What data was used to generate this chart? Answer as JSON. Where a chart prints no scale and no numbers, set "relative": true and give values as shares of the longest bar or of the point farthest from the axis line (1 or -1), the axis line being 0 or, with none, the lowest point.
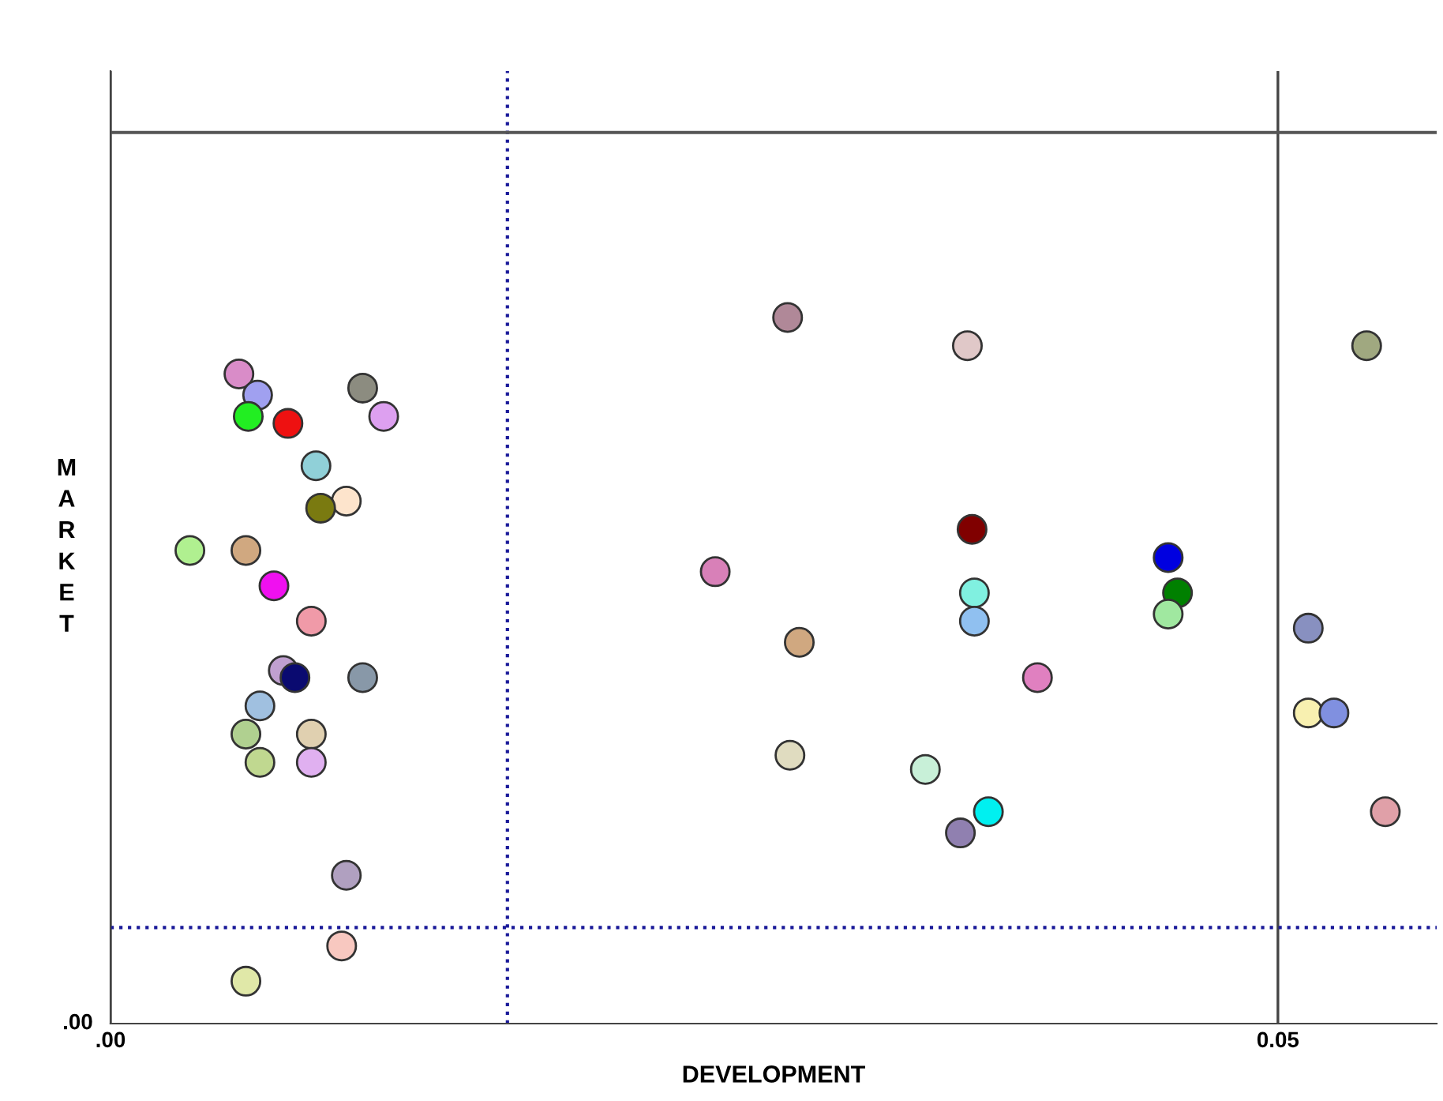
{
  "chart_data": {
    "type": "scatter",
    "xlabel": "DEVELOPMENT",
    "ylabel": "MARKET",
    "relative": true,
    "xlim": [
      0,
      0.0568
    ],
    "xticks": [
      {
        "value": 0,
        "label": ".00"
      },
      0.05
    ],
    "grid": "x",
    "marker": "circle",
    "annotations": [
      ".00"
    ],
    "x": [
      0.0055,
      0.0063,
      0.0108,
      0.0059,
      0.0076,
      0.0117,
      0.0088,
      0.0101,
      0.009,
      0.0034,
      0.0058,
      0.007,
      0.0086,
      0.0074,
      0.0079,
      0.0108,
      0.0064,
      0.0058,
      0.0086,
      0.0064,
      0.0086,
      0.0101,
      0.0099,
      0.0058,
      0.029,
      0.0367,
      0.0538,
      0.0369,
      0.0453,
      0.0259,
      0.037,
      0.0457,
      0.037,
      0.0453,
      0.0295,
      0.0513,
      0.0397,
      0.0513,
      0.0524,
      0.0291,
      0.0349,
      0.0376,
      0.0364,
      0.0546
    ],
    "values": [
      0.92,
      0.89,
      0.9,
      0.86,
      0.85,
      0.86,
      0.79,
      0.74,
      0.73,
      0.67,
      0.67,
      0.62,
      0.57,
      0.5,
      0.49,
      0.49,
      0.45,
      0.41,
      0.41,
      0.37,
      0.37,
      0.21,
      0.11,
      0.06,
      1.0,
      0.96,
      0.96,
      0.7,
      0.66,
      0.64,
      0.61,
      0.61,
      0.57,
      0.58,
      0.54,
      0.56,
      0.49,
      0.44,
      0.44,
      0.38,
      0.36,
      0.3,
      0.27,
      0.3
    ],
    "colors": [
      "#d98cc8",
      "#a0a0f0",
      "#8c8c80",
      "#22ee22",
      "#ee1111",
      "#dda0f0",
      "#90d0d8",
      "#fde4cc",
      "#7a7a10",
      "#b0f090",
      "#d0a880",
      "#f010f0",
      "#f09aa8",
      "#c0a0d0",
      "#0a0a70",
      "#8898a8",
      "#a0c0e0",
      "#b0d090",
      "#e0d0b0",
      "#c0d890",
      "#e0b0f0",
      "#b0a0c0",
      "#f8c8c0",
      "#e0e8a8",
      "#b08898",
      "#e0c8c8",
      "#a0a880",
      "#800000",
      "#0000e0",
      "#d880b8",
      "#80f0e0",
      "#008000",
      "#90c0f0",
      "#a0e8a0",
      "#d0a880",
      "#8890c0",
      "#e080c0",
      "#f8f0b0",
      "#8090e0",
      "#e0dcc0",
      "#c8f0d8",
      "#00f0f0",
      "#9080b0",
      "#e0a0a8"
    ],
    "ref_lines": [
      {
        "axis": "x",
        "value": 0.017,
        "color": "#1a1a99",
        "line_style": "dotted"
      },
      {
        "axis": "y",
        "value": 0.136,
        "color": "#1a1a99",
        "line_style": "dotted"
      },
      {
        "axis": "y",
        "value": 1.262,
        "color": "#555555",
        "line_style": "solid"
      }
    ]
  }
}
